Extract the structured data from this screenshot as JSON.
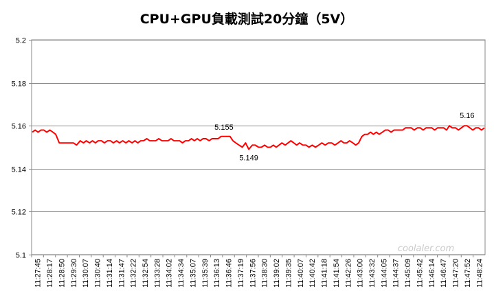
{
  "chart_data": {
    "type": "line",
    "title": "CPU+GPU負載測試20分鐘（5V）",
    "xlabel": "",
    "ylabel": "",
    "ylim": [
      5.1,
      5.2
    ],
    "yticks": [
      "5.1",
      "5.12",
      "5.14",
      "5.16",
      "5.18",
      "5.2"
    ],
    "x_tick_labels": [
      "11:27:45",
      "11:28:17",
      "11:28:50",
      "11:29:30",
      "11:30:07",
      "11:30:40",
      "11:31:14",
      "11:31:47",
      "11:32:22",
      "11:32:54",
      "11:33:28",
      "11:34:02",
      "11:34:34",
      "11:35:07",
      "11:35:39",
      "11:36:13",
      "11:36:46",
      "11:37:19",
      "11:37:56",
      "11:38:30",
      "11:39:02",
      "11:39:35",
      "11:40:07",
      "11:40:42",
      "11:41:18",
      "11:41:54",
      "11:42:26",
      "11:43:00",
      "11:43:32",
      "11:44:05",
      "11:44:37",
      "11:45:09",
      "11:45:42",
      "11:46:14",
      "11:46:47",
      "11:47:20",
      "11:47:52",
      "11:48:24"
    ],
    "grid": true,
    "legend": "none",
    "line_color": "#ff0000",
    "series": [
      {
        "points": [
          [
            "11:27:45",
            5.157
          ],
          [
            "11:27:53",
            5.158
          ],
          [
            "11:28:01",
            5.157
          ],
          [
            "11:28:09",
            5.158
          ],
          [
            "11:28:17",
            5.158
          ],
          [
            "11:28:25",
            5.157
          ],
          [
            "11:28:34",
            5.158
          ],
          [
            "11:28:42",
            5.157
          ],
          [
            "11:28:50",
            5.156
          ],
          [
            "11:29:00",
            5.152
          ],
          [
            "11:29:10",
            5.152
          ],
          [
            "11:29:20",
            5.152
          ],
          [
            "11:29:30",
            5.152
          ],
          [
            "11:29:39",
            5.152
          ],
          [
            "11:29:48",
            5.151
          ],
          [
            "11:29:58",
            5.153
          ],
          [
            "11:30:07",
            5.152
          ],
          [
            "11:30:15",
            5.153
          ],
          [
            "11:30:24",
            5.152
          ],
          [
            "11:30:32",
            5.153
          ],
          [
            "11:30:40",
            5.152
          ],
          [
            "11:30:48",
            5.153
          ],
          [
            "11:30:57",
            5.153
          ],
          [
            "11:31:05",
            5.152
          ],
          [
            "11:31:14",
            5.153
          ],
          [
            "11:31:22",
            5.153
          ],
          [
            "11:31:30",
            5.152
          ],
          [
            "11:31:39",
            5.153
          ],
          [
            "11:31:47",
            5.152
          ],
          [
            "11:31:56",
            5.153
          ],
          [
            "11:32:05",
            5.152
          ],
          [
            "11:32:13",
            5.153
          ],
          [
            "11:32:22",
            5.152
          ],
          [
            "11:32:30",
            5.153
          ],
          [
            "11:32:38",
            5.152
          ],
          [
            "11:32:46",
            5.153
          ],
          [
            "11:32:54",
            5.153
          ],
          [
            "11:33:03",
            5.154
          ],
          [
            "11:33:11",
            5.153
          ],
          [
            "11:33:20",
            5.153
          ],
          [
            "11:33:28",
            5.153
          ],
          [
            "11:33:36",
            5.154
          ],
          [
            "11:33:45",
            5.153
          ],
          [
            "11:33:53",
            5.153
          ],
          [
            "11:34:02",
            5.153
          ],
          [
            "11:34:10",
            5.154
          ],
          [
            "11:34:18",
            5.153
          ],
          [
            "11:34:26",
            5.153
          ],
          [
            "11:34:34",
            5.153
          ],
          [
            "11:34:42",
            5.152
          ],
          [
            "11:34:50",
            5.153
          ],
          [
            "11:34:59",
            5.153
          ],
          [
            "11:35:07",
            5.154
          ],
          [
            "11:35:15",
            5.153
          ],
          [
            "11:35:23",
            5.154
          ],
          [
            "11:35:31",
            5.153
          ],
          [
            "11:35:39",
            5.154
          ],
          [
            "11:35:47",
            5.154
          ],
          [
            "11:35:56",
            5.153
          ],
          [
            "11:36:04",
            5.154
          ],
          [
            "11:36:13",
            5.154
          ],
          [
            "11:36:21",
            5.154
          ],
          [
            "11:36:29",
            5.155
          ],
          [
            "11:36:37",
            5.155
          ],
          [
            "11:36:46",
            5.155
          ],
          [
            "11:36:54",
            5.155
          ],
          [
            "11:37:02",
            5.153
          ],
          [
            "11:37:10",
            5.152
          ],
          [
            "11:37:19",
            5.151
          ],
          [
            "11:37:28",
            5.15
          ],
          [
            "11:37:37",
            5.152
          ],
          [
            "11:37:46",
            5.149
          ],
          [
            "11:37:56",
            5.151
          ],
          [
            "11:38:04",
            5.151
          ],
          [
            "11:38:13",
            5.15
          ],
          [
            "11:38:21",
            5.15
          ],
          [
            "11:38:30",
            5.151
          ],
          [
            "11:38:38",
            5.15
          ],
          [
            "11:38:46",
            5.15
          ],
          [
            "11:38:54",
            5.151
          ],
          [
            "11:39:02",
            5.15
          ],
          [
            "11:39:10",
            5.151
          ],
          [
            "11:39:18",
            5.152
          ],
          [
            "11:39:27",
            5.151
          ],
          [
            "11:39:35",
            5.152
          ],
          [
            "11:39:43",
            5.153
          ],
          [
            "11:39:51",
            5.152
          ],
          [
            "11:39:59",
            5.151
          ],
          [
            "11:40:07",
            5.152
          ],
          [
            "11:40:16",
            5.151
          ],
          [
            "11:40:25",
            5.151
          ],
          [
            "11:40:33",
            5.15
          ],
          [
            "11:40:42",
            5.151
          ],
          [
            "11:40:51",
            5.15
          ],
          [
            "11:41:00",
            5.151
          ],
          [
            "11:41:09",
            5.152
          ],
          [
            "11:41:18",
            5.151
          ],
          [
            "11:41:27",
            5.152
          ],
          [
            "11:41:36",
            5.152
          ],
          [
            "11:41:45",
            5.151
          ],
          [
            "11:41:54",
            5.152
          ],
          [
            "11:42:02",
            5.153
          ],
          [
            "11:42:10",
            5.152
          ],
          [
            "11:42:18",
            5.152
          ],
          [
            "11:42:26",
            5.153
          ],
          [
            "11:42:35",
            5.152
          ],
          [
            "11:42:43",
            5.151
          ],
          [
            "11:42:51",
            5.152
          ],
          [
            "11:43:00",
            5.155
          ],
          [
            "11:43:08",
            5.156
          ],
          [
            "11:43:16",
            5.156
          ],
          [
            "11:43:24",
            5.157
          ],
          [
            "11:43:32",
            5.156
          ],
          [
            "11:43:40",
            5.157
          ],
          [
            "11:43:48",
            5.156
          ],
          [
            "11:43:57",
            5.157
          ],
          [
            "11:44:05",
            5.158
          ],
          [
            "11:44:13",
            5.158
          ],
          [
            "11:44:21",
            5.157
          ],
          [
            "11:44:29",
            5.158
          ],
          [
            "11:44:37",
            5.158
          ],
          [
            "11:44:45",
            5.158
          ],
          [
            "11:44:53",
            5.158
          ],
          [
            "11:45:01",
            5.159
          ],
          [
            "11:45:09",
            5.159
          ],
          [
            "11:45:17",
            5.159
          ],
          [
            "11:45:25",
            5.158
          ],
          [
            "11:45:34",
            5.159
          ],
          [
            "11:45:42",
            5.159
          ],
          [
            "11:45:50",
            5.158
          ],
          [
            "11:45:58",
            5.159
          ],
          [
            "11:46:06",
            5.159
          ],
          [
            "11:46:14",
            5.159
          ],
          [
            "11:46:22",
            5.158
          ],
          [
            "11:46:30",
            5.159
          ],
          [
            "11:46:39",
            5.159
          ],
          [
            "11:46:47",
            5.159
          ],
          [
            "11:46:55",
            5.158
          ],
          [
            "11:47:03",
            5.16
          ],
          [
            "11:47:11",
            5.159
          ],
          [
            "11:47:20",
            5.159
          ],
          [
            "11:47:28",
            5.158
          ],
          [
            "11:47:36",
            5.159
          ],
          [
            "11:47:44",
            5.16
          ],
          [
            "11:47:52",
            5.16
          ],
          [
            "11:48:00",
            5.159
          ],
          [
            "11:48:08",
            5.158
          ],
          [
            "11:48:16",
            5.159
          ],
          [
            "11:48:24",
            5.159
          ],
          [
            "11:48:32",
            5.158
          ],
          [
            "11:48:40",
            5.159
          ]
        ]
      }
    ],
    "annotations": [
      {
        "text": "5.155",
        "x": "11:36:37",
        "y": 5.155
      },
      {
        "text": "5.149",
        "x": "11:37:46",
        "y": 5.149
      },
      {
        "text": "5.16",
        "x": "11:47:52",
        "y": 5.16
      }
    ]
  },
  "watermark": {
    "text": "coolaler.com"
  }
}
